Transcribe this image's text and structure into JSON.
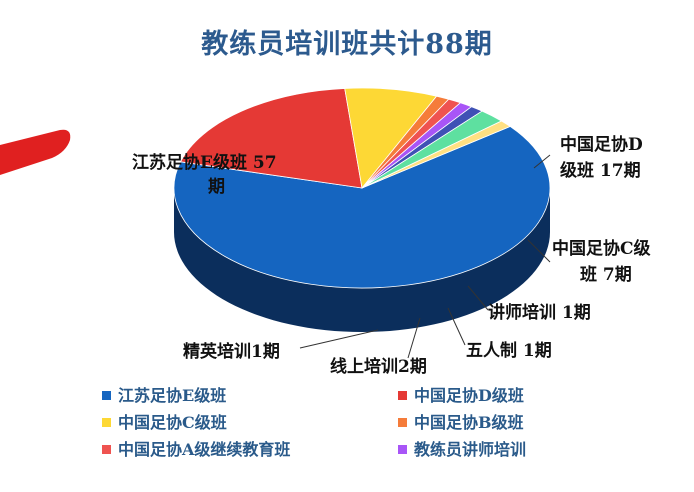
{
  "chart_data": {
    "type": "pie",
    "title": "教练员培训班共计88期",
    "total": 88,
    "slices": [
      {
        "name": "江苏足协E级班",
        "value": 57,
        "color": "#1565c0",
        "side": "#0b2e5c"
      },
      {
        "name": "中国足协D级班",
        "value": 17,
        "color": "#e53935",
        "side": "#7a1414"
      },
      {
        "name": "中国足协C级班",
        "value": 7,
        "color": "#fdd835",
        "side": "#b08a00"
      },
      {
        "name": "中国足协B级班",
        "value": 1,
        "color": "#f57c3a",
        "side": "#9a4412"
      },
      {
        "name": "中国足协A级继续教育班",
        "value": 1,
        "color": "#ef5350",
        "side": "#8a2020"
      },
      {
        "name": "教练员讲师培训",
        "value": 1,
        "color": "#a855f7",
        "side": "#5a2a8a"
      },
      {
        "name": "五人制",
        "value": 1,
        "color": "#3f51b5",
        "side": "#1d2660"
      },
      {
        "name": "线上培训",
        "value": 2,
        "color": "#5ee0a0",
        "side": "#2a8a5a"
      },
      {
        "name": "精英培训",
        "value": 1,
        "color": "#ffe082",
        "side": "#b89a40"
      }
    ],
    "legend_position": "bottom"
  },
  "labels": {
    "e_line1": "江苏足协E级班  57",
    "e_line2": "期",
    "d_line1": "中国足协D",
    "d_line2": "级班  17期",
    "c_line1": "中国足协C级",
    "c_line2": "班  7期",
    "lecturer": "讲师培训  1期",
    "futsal": "五人制  1期",
    "online": "线上培训2期",
    "elite": "精英培训1期"
  }
}
